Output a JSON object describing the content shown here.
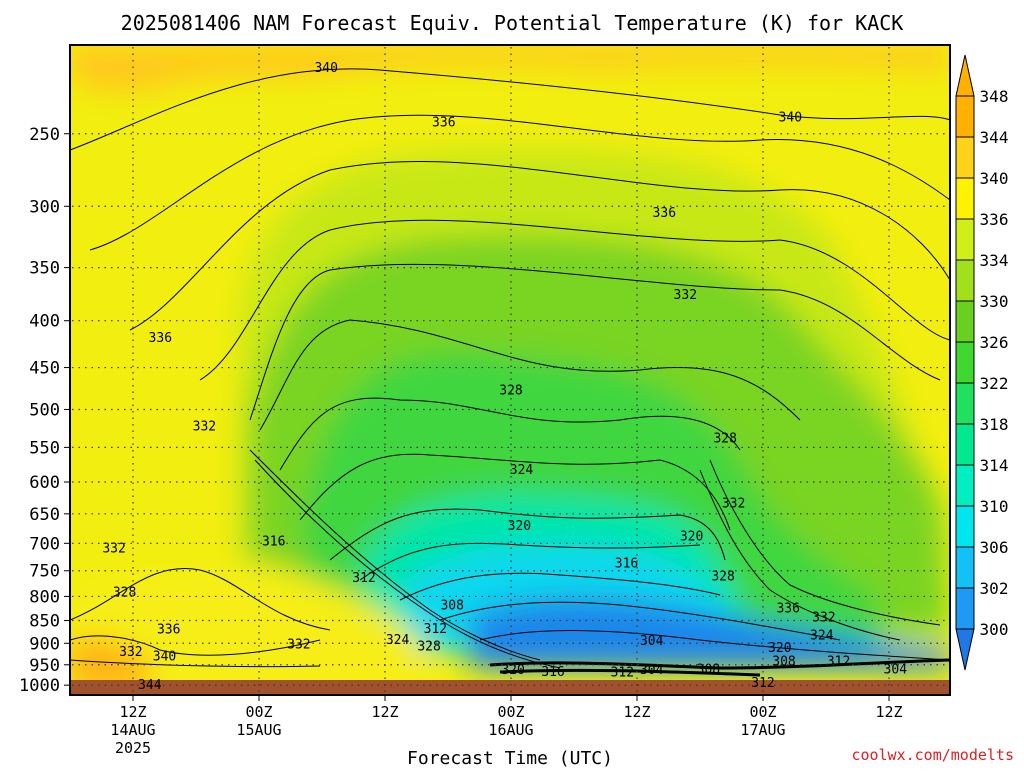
{
  "chart_data": {
    "type": "heatmap",
    "title": "2025081406 NAM Forecast Equiv. Potential Temperature (K) for KACK",
    "xlabel": "Forecast Time (UTC)",
    "ylabel": "",
    "credit": "coolwx.com/modelts",
    "y_scale": "log",
    "ylim": [
      1000,
      200
    ],
    "y_ticks": [
      250,
      300,
      350,
      400,
      450,
      500,
      550,
      600,
      650,
      700,
      750,
      800,
      850,
      900,
      950,
      1000
    ],
    "x_ticks": [
      {
        "hour": 6,
        "label": "12Z",
        "sub": "14AUG",
        "sub2": "2025"
      },
      {
        "hour": 12,
        "label": "00Z",
        "sub": "15AUG",
        "sub2": ""
      },
      {
        "hour": 18,
        "label": "12Z",
        "sub": "",
        "sub2": ""
      },
      {
        "hour": 24,
        "label": "00Z",
        "sub": "16AUG",
        "sub2": ""
      },
      {
        "hour": 30,
        "label": "12Z",
        "sub": "",
        "sub2": ""
      },
      {
        "hour": 36,
        "label": "00Z",
        "sub": "17AUG",
        "sub2": ""
      },
      {
        "hour": 42,
        "label": "12Z",
        "sub": "",
        "sub2": ""
      }
    ],
    "colorbar": {
      "levels": [
        300,
        302,
        306,
        310,
        314,
        318,
        322,
        326,
        330,
        334,
        336,
        340,
        344,
        348
      ],
      "colors": [
        "#1f78e6",
        "#1e9af2",
        "#12c2f6",
        "#00e6f0",
        "#00eec0",
        "#00e890",
        "#20e060",
        "#40d830",
        "#6ad020",
        "#a2e01c",
        "#d0ee18",
        "#fff200",
        "#ffd21a",
        "#ffb000"
      ]
    },
    "contour_labels": [
      {
        "value": "340",
        "hour": 15.2,
        "p": 212
      },
      {
        "value": "336",
        "hour": 20.8,
        "p": 243
      },
      {
        "value": "340",
        "hour": 37.3,
        "p": 240
      },
      {
        "value": "336",
        "hour": 31.3,
        "p": 305
      },
      {
        "value": "332",
        "hour": 32.3,
        "p": 375
      },
      {
        "value": "336",
        "hour": 7.3,
        "p": 418
      },
      {
        "value": "328",
        "hour": 24.0,
        "p": 477
      },
      {
        "value": "332",
        "hour": 9.4,
        "p": 522
      },
      {
        "value": "328",
        "hour": 34.2,
        "p": 538
      },
      {
        "value": "324",
        "hour": 24.5,
        "p": 582
      },
      {
        "value": "332",
        "hour": 34.6,
        "p": 633
      },
      {
        "value": "320",
        "hour": 24.4,
        "p": 670
      },
      {
        "value": "320",
        "hour": 32.6,
        "p": 688
      },
      {
        "value": "316",
        "hour": 12.7,
        "p": 697
      },
      {
        "value": "316",
        "hour": 29.5,
        "p": 736
      },
      {
        "value": "332",
        "hour": 5.1,
        "p": 709
      },
      {
        "value": "312",
        "hour": 17.0,
        "p": 764
      },
      {
        "value": "328",
        "hour": 34.1,
        "p": 761
      },
      {
        "value": "328",
        "hour": 5.6,
        "p": 792
      },
      {
        "value": "308",
        "hour": 21.2,
        "p": 818
      },
      {
        "value": "336",
        "hour": 7.7,
        "p": 869
      },
      {
        "value": "312",
        "hour": 20.4,
        "p": 868
      },
      {
        "value": "336",
        "hour": 37.2,
        "p": 825
      },
      {
        "value": "332",
        "hour": 38.9,
        "p": 844
      },
      {
        "value": "324",
        "hour": 38.8,
        "p": 883
      },
      {
        "value": "324",
        "hour": 18.6,
        "p": 893
      },
      {
        "value": "304",
        "hour": 30.7,
        "p": 895
      },
      {
        "value": "328",
        "hour": 20.1,
        "p": 907
      },
      {
        "value": "332",
        "hour": 13.9,
        "p": 903
      },
      {
        "value": "320",
        "hour": 36.8,
        "p": 911
      },
      {
        "value": "332",
        "hour": 5.9,
        "p": 920
      },
      {
        "value": "340",
        "hour": 7.5,
        "p": 930
      },
      {
        "value": "308",
        "hour": 37.0,
        "p": 942
      },
      {
        "value": "312",
        "hour": 39.6,
        "p": 942
      },
      {
        "value": "320",
        "hour": 24.1,
        "p": 962
      },
      {
        "value": "316",
        "hour": 26.0,
        "p": 968
      },
      {
        "value": "312",
        "hour": 29.3,
        "p": 969
      },
      {
        "value": "304",
        "hour": 30.7,
        "p": 962
      },
      {
        "value": "308",
        "hour": 33.4,
        "p": 961
      },
      {
        "value": "304",
        "hour": 42.3,
        "p": 961
      },
      {
        "value": "344",
        "hour": 6.8,
        "p": 1000
      },
      {
        "value": "312",
        "hour": 36.0,
        "p": 995
      }
    ]
  }
}
